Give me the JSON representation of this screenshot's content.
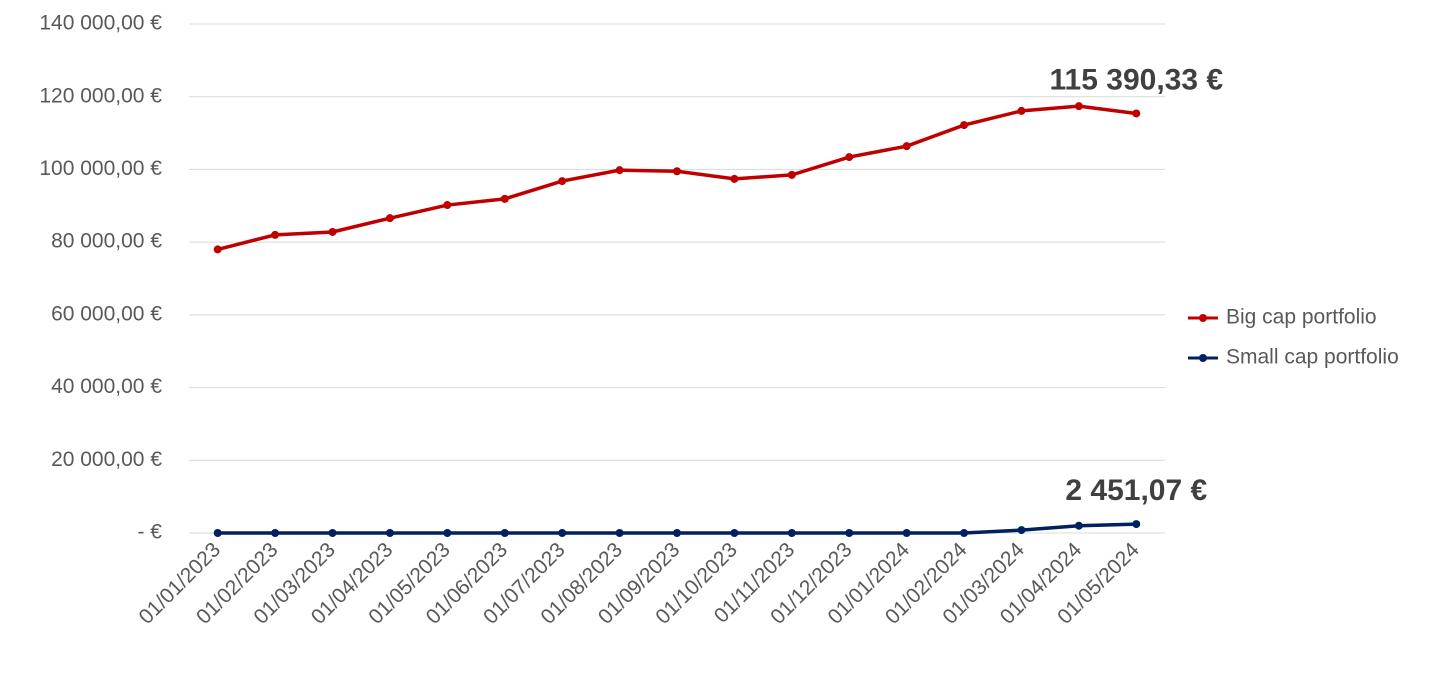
{
  "chart_data": {
    "type": "line",
    "categories": [
      "01/01/2023",
      "01/02/2023",
      "01/03/2023",
      "01/04/2023",
      "01/05/2023",
      "01/06/2023",
      "01/07/2023",
      "01/08/2023",
      "01/09/2023",
      "01/10/2023",
      "01/11/2023",
      "01/12/2023",
      "01/01/2024",
      "01/02/2024",
      "01/03/2024",
      "01/04/2024",
      "01/05/2024"
    ],
    "series": [
      {
        "name": "Big cap portfolio",
        "color": "#c00000",
        "values": [
          78000,
          82000,
          82800,
          86600,
          90200,
          91900,
          96800,
          99800,
          99500,
          97400,
          98500,
          103400,
          106400,
          112200,
          116100,
          117400,
          115390.33
        ],
        "value_labels": [
          null,
          null,
          null,
          null,
          null,
          null,
          null,
          null,
          null,
          null,
          null,
          null,
          null,
          null,
          null,
          null,
          "115 390,33 €"
        ]
      },
      {
        "name": "Small cap portfolio",
        "color": "#002060",
        "values": [
          0,
          0,
          0,
          0,
          0,
          0,
          0,
          0,
          0,
          0,
          0,
          0,
          0,
          0,
          800,
          2000,
          2451.07
        ],
        "value_labels": [
          null,
          null,
          null,
          null,
          null,
          null,
          null,
          null,
          null,
          null,
          null,
          null,
          null,
          null,
          null,
          null,
          "2 451,07 €"
        ]
      }
    ],
    "ylim": [
      0,
      140000
    ],
    "yticks": [
      {
        "value": 0,
        "label": "-   €"
      },
      {
        "value": 20000,
        "label": "20 000,00 €"
      },
      {
        "value": 40000,
        "label": "40 000,00 €"
      },
      {
        "value": 60000,
        "label": "60 000,00 €"
      },
      {
        "value": 80000,
        "label": "80 000,00 €"
      },
      {
        "value": 100000,
        "label": "100 000,00 €"
      },
      {
        "value": 120000,
        "label": "120 000,00 €"
      },
      {
        "value": 140000,
        "label": "140 000,00 €"
      }
    ],
    "grid": true,
    "legend": "right"
  }
}
